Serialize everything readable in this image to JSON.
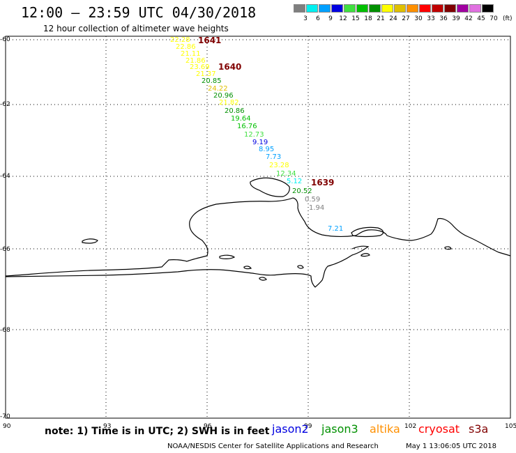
{
  "header": {
    "title": "12:00 — 23:59 UTC 04/30/2018",
    "subtitle": "12 hour collection of altimeter wave heights"
  },
  "legend": {
    "unit": "(ft)",
    "bins": [
      {
        "label": "3",
        "color": "#7f7f7f"
      },
      {
        "label": "6",
        "color": "#00f0f0"
      },
      {
        "label": "9",
        "color": "#00a0ff"
      },
      {
        "label": "12",
        "color": "#0000e0"
      },
      {
        "label": "15",
        "color": "#40e040"
      },
      {
        "label": "18",
        "color": "#00c000"
      },
      {
        "label": "21",
        "color": "#009000"
      },
      {
        "label": "24",
        "color": "#ffff00"
      },
      {
        "label": "27",
        "color": "#e0c000"
      },
      {
        "label": "30",
        "color": "#ff9000"
      },
      {
        "label": "33",
        "color": "#ff0000"
      },
      {
        "label": "36",
        "color": "#c00000"
      },
      {
        "label": "39",
        "color": "#800000"
      },
      {
        "label": "42",
        "color": "#a000a0"
      },
      {
        "label": "45",
        "color": "#e070e0"
      },
      {
        "label": "70",
        "color": "#000000"
      }
    ]
  },
  "axes": {
    "lon_labels": [
      "90",
      "93",
      "96",
      "99",
      "102",
      "105"
    ],
    "lat_labels": [
      "-60",
      "-62",
      "-64",
      "-66",
      "-68",
      "-70"
    ]
  },
  "pass_times": [
    {
      "label": "1641",
      "color": "#800000"
    },
    {
      "label": "1640",
      "color": "#800000"
    },
    {
      "label": "1639",
      "color": "#800000"
    }
  ],
  "swh_labels": [
    {
      "value": "22.28",
      "color": "#ffff00"
    },
    {
      "value": "22.86",
      "color": "#ffff00"
    },
    {
      "value": "21.11",
      "color": "#ffff00"
    },
    {
      "value": "21.86",
      "color": "#ffff00"
    },
    {
      "value": "23.69",
      "color": "#ffff00"
    },
    {
      "value": "21.37",
      "color": "#ffff00"
    },
    {
      "value": "20.85",
      "color": "#009000"
    },
    {
      "value": "24.22",
      "color": "#e0c000"
    },
    {
      "value": "20.96",
      "color": "#009000"
    },
    {
      "value": "21.82",
      "color": "#ffff00"
    },
    {
      "value": "20.86",
      "color": "#009000"
    },
    {
      "value": "19.64",
      "color": "#00c000"
    },
    {
      "value": "16.76",
      "color": "#00c000"
    },
    {
      "value": "12.73",
      "color": "#40e040"
    },
    {
      "value": "9.19",
      "color": "#0000e0"
    },
    {
      "value": "8.95",
      "color": "#00a0ff"
    },
    {
      "value": "7.73",
      "color": "#00a0ff"
    },
    {
      "value": "23.28",
      "color": "#ffff00"
    },
    {
      "value": "12.34",
      "color": "#40e040"
    },
    {
      "value": "5.12",
      "color": "#00f0f0"
    },
    {
      "value": "20.52",
      "color": "#009000"
    },
    {
      "value": "0.59",
      "color": "#7f7f7f"
    },
    {
      "value": "1.94",
      "color": "#7f7f7f"
    },
    {
      "value": "7.21",
      "color": "#00a0ff"
    }
  ],
  "footer": {
    "note": "note:  1) Time is in UTC;  2) SWH is in feet",
    "satellites": [
      {
        "name": "jason2",
        "color": "#0000e0"
      },
      {
        "name": "jason3",
        "color": "#009000"
      },
      {
        "name": "altika",
        "color": "#ff9000"
      },
      {
        "name": "cryosat",
        "color": "#ff0000"
      },
      {
        "name": "s3a",
        "color": "#800000"
      }
    ],
    "credit": "NOAA/NESDIS Center for Satellite Applications and Research",
    "timestamp": "May  1 13:06:05 UTC 2018"
  }
}
